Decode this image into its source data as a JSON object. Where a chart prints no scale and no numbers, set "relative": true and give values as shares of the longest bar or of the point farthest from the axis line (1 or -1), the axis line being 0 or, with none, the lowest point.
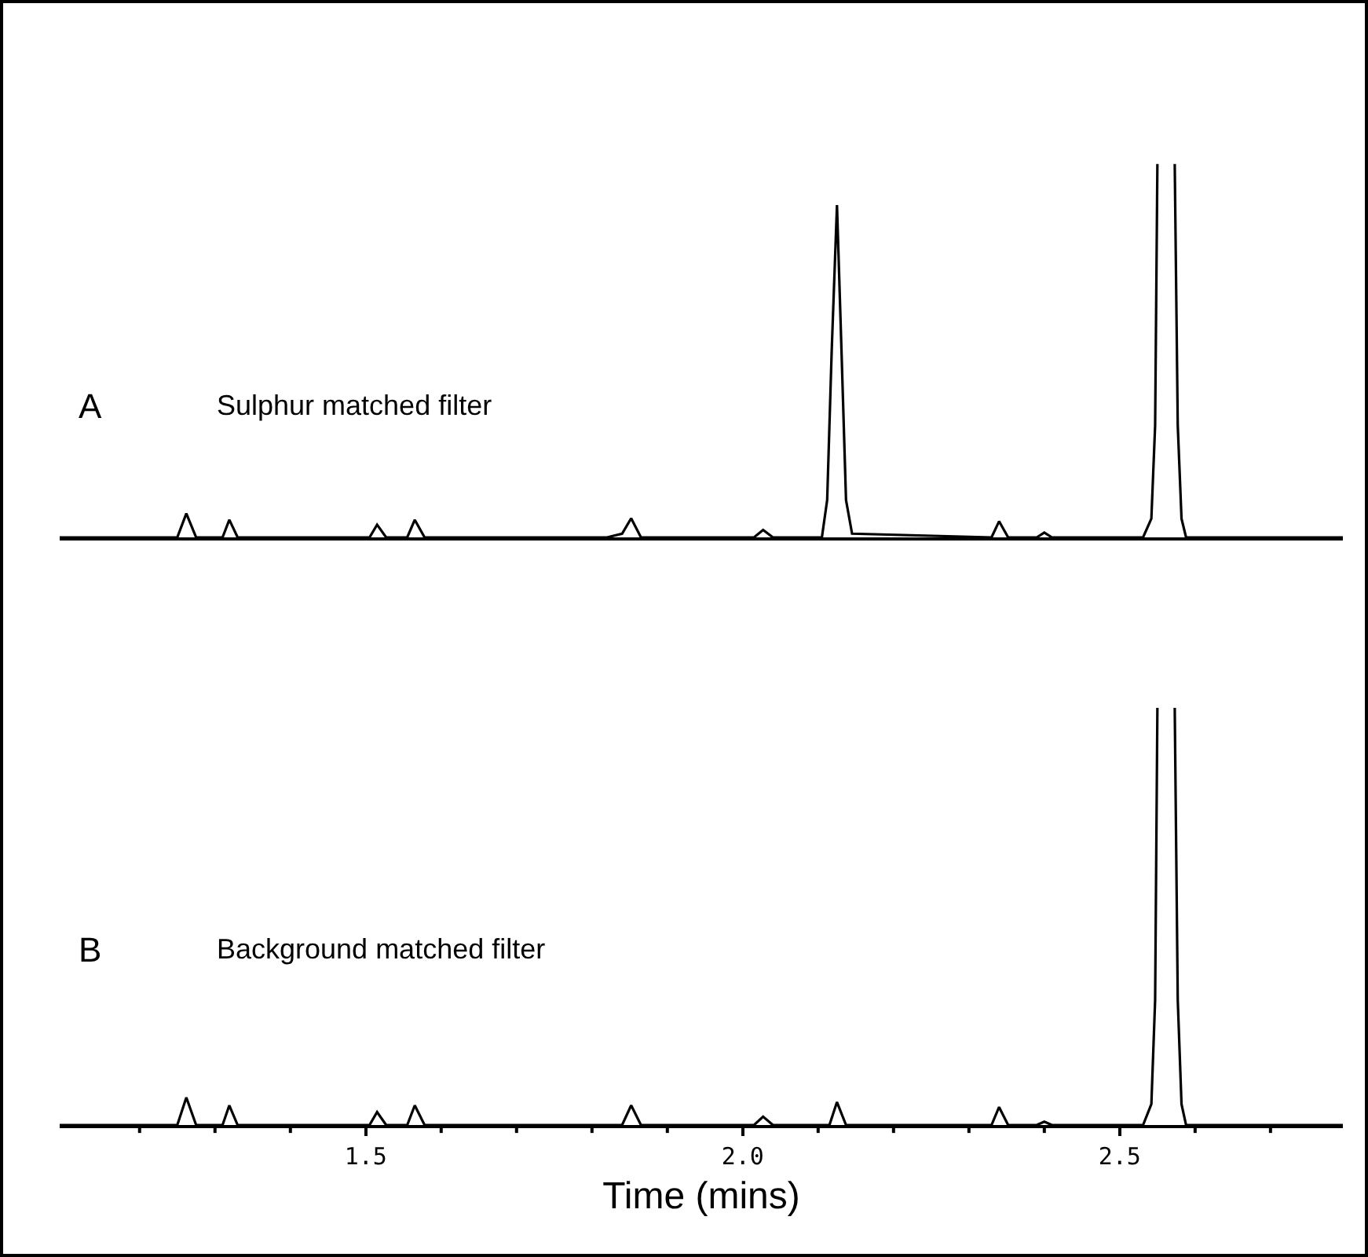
{
  "chart_data": [
    {
      "type": "line",
      "relative": true,
      "xlim": [
        1.094,
        2.796
      ],
      "line_style": "solid",
      "marker": "none",
      "annotations": [
        "A",
        "Sulphur matched filter"
      ],
      "x": [
        1.094,
        1.25,
        1.262,
        1.275,
        1.31,
        1.319,
        1.33,
        1.505,
        1.515,
        1.527,
        1.555,
        1.565,
        1.578,
        1.82,
        1.84,
        1.852,
        1.865,
        2.015,
        2.027,
        2.04,
        2.105,
        2.112,
        2.118,
        2.125,
        2.131,
        2.137,
        2.145,
        2.33,
        2.34,
        2.352,
        2.39,
        2.4,
        2.41,
        2.531,
        2.542,
        2.547,
        2.55,
        2.562,
        2.573,
        2.577,
        2.582,
        2.588,
        2.796
      ],
      "series": [
        {
          "color": "#000000",
          "values": [
            0,
            0,
            0.064,
            0,
            0,
            0.047,
            0,
            0,
            0.034,
            0,
            0,
            0.047,
            0,
            0,
            0.01,
            0.051,
            0,
            0,
            0.02,
            0,
            0,
            0.1,
            0.5,
            0.89,
            0.5,
            0.1,
            0.01,
            0,
            0.043,
            0,
            0,
            0.013,
            0,
            0,
            0.05,
            0.3,
            1,
            null,
            1,
            0.3,
            0.05,
            0,
            0
          ]
        }
      ]
    },
    {
      "type": "line",
      "relative": true,
      "xlim": [
        1.094,
        2.796
      ],
      "xlabel": "Time (mins)",
      "line_style": "solid",
      "marker": "none",
      "xticks": [
        {
          "value": 1.2,
          "label": null
        },
        {
          "value": 1.3,
          "label": null
        },
        {
          "value": 1.4,
          "label": null
        },
        {
          "value": 1.5,
          "label": "1.5"
        },
        {
          "value": 1.6,
          "label": null
        },
        {
          "value": 1.7,
          "label": null
        },
        {
          "value": 1.8,
          "label": null
        },
        {
          "value": 1.9,
          "label": null
        },
        {
          "value": 2.0,
          "label": "2.0"
        },
        {
          "value": 2.1,
          "label": null
        },
        {
          "value": 2.2,
          "label": null
        },
        {
          "value": 2.3,
          "label": null
        },
        {
          "value": 2.4,
          "label": null
        },
        {
          "value": 2.5,
          "label": "2.5"
        },
        {
          "value": 2.6,
          "label": null
        },
        {
          "value": 2.7,
          "label": null
        }
      ],
      "annotations": [
        "B",
        "Background matched filter"
      ],
      "x": [
        1.094,
        1.25,
        1.262,
        1.275,
        1.31,
        1.319,
        1.33,
        1.505,
        1.515,
        1.527,
        1.555,
        1.565,
        1.578,
        1.84,
        1.852,
        1.865,
        2.015,
        2.027,
        2.04,
        2.115,
        2.125,
        2.137,
        2.33,
        2.34,
        2.352,
        2.39,
        2.4,
        2.41,
        2.531,
        2.542,
        2.547,
        2.55,
        2.562,
        2.573,
        2.577,
        2.582,
        2.588,
        2.796
      ],
      "series": [
        {
          "color": "#000000",
          "values": [
            0,
            0,
            0.066,
            0,
            0,
            0.047,
            0,
            0,
            0.031,
            0,
            0,
            0.047,
            0,
            0,
            0.047,
            0,
            0,
            0.02,
            0,
            0,
            0.055,
            0,
            0,
            0.043,
            0,
            0,
            0.008,
            0,
            0,
            0.05,
            0.3,
            1,
            null,
            1,
            0.3,
            0.05,
            0,
            0
          ]
        }
      ]
    }
  ]
}
